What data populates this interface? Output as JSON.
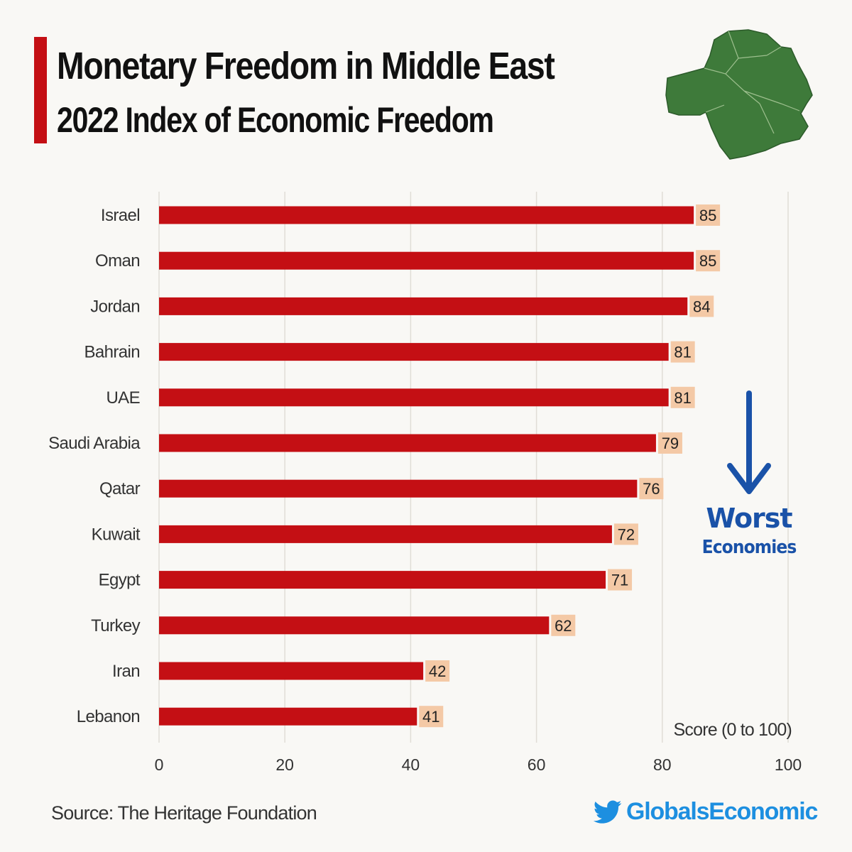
{
  "header": {
    "title": "Monetary Freedom in Middle East",
    "subtitle": "2022 Index of Economic Freedom"
  },
  "annotation": {
    "line1": "Worst",
    "line2": "Economies"
  },
  "footer": {
    "source": "Source: The Heritage Foundation",
    "brand": "GlobalsEconomic"
  },
  "colors": {
    "bar": "#c40f14",
    "label_bg": "#f4c9a6",
    "annotation": "#1a52a8",
    "brand": "#1d8fe0",
    "map": "#3e7a3a"
  },
  "icons": {
    "map": "middle-east-map-icon",
    "arrow": "arrow-down-icon",
    "brand": "twitter-bird-icon"
  },
  "chart_data": {
    "type": "bar",
    "orientation": "horizontal",
    "title": "Monetary Freedom in Middle East",
    "subtitle": "2022 Index of Economic Freedom",
    "xlabel": "Score (0 to 100)",
    "ylabel": "",
    "xlim": [
      0,
      100
    ],
    "xticks": [
      0,
      20,
      40,
      60,
      80,
      100
    ],
    "grid": true,
    "categories": [
      "Israel",
      "Oman",
      "Jordan",
      "Bahrain",
      "UAE",
      "Saudi Arabia",
      "Qatar",
      "Kuwait",
      "Egypt",
      "Turkey",
      "Iran",
      "Lebanon"
    ],
    "values": [
      85,
      85,
      84,
      81,
      81,
      79,
      76,
      72,
      71,
      62,
      42,
      41
    ]
  }
}
